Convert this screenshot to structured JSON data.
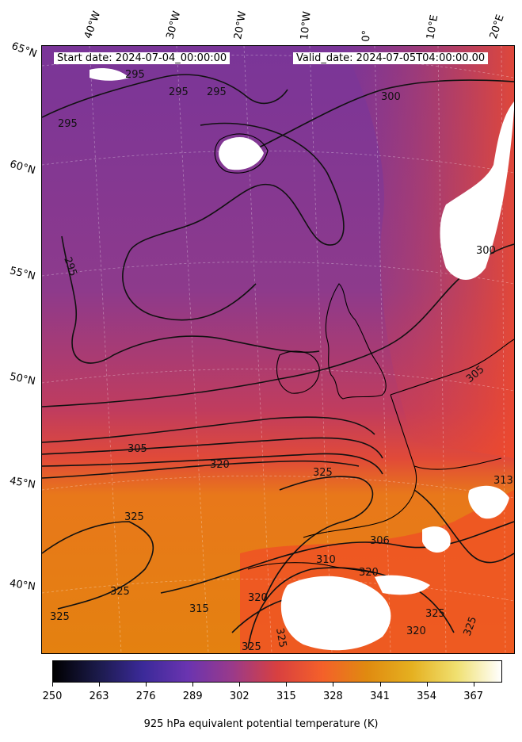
{
  "header": {
    "start_date": "Start date: 2024-07-04_00:00:00",
    "valid_date": "Valid_date: 2024-07-05T04:00:00.00"
  },
  "longitude_labels": [
    "40°W",
    "30°W",
    "20°W",
    "10°W",
    "0°",
    "10°E",
    "20°E"
  ],
  "latitude_labels": [
    "65°N",
    "60°N",
    "55°N",
    "50°N",
    "45°N",
    "40°N"
  ],
  "contour_labels": [
    "295",
    "295",
    "295",
    "295",
    "300",
    "300",
    "295",
    "305",
    "320",
    "325",
    "325",
    "325",
    "325",
    "306",
    "310",
    "320",
    "315",
    "320",
    "325",
    "325",
    "325",
    "320",
    "325",
    "313",
    "305"
  ],
  "colorbar": {
    "ticks": [
      "250",
      "263",
      "276",
      "289",
      "302",
      "315",
      "328",
      "341",
      "354",
      "367"
    ],
    "min": 250,
    "max": 375,
    "title": "925 hPa equivalent potential temperature (K)",
    "colormap": "CMRmap-like",
    "stops": [
      "#000000",
      "#1b1a4a",
      "#3b2a99",
      "#6a34b0",
      "#9a3a8a",
      "#d84040",
      "#f4602a",
      "#e08a10",
      "#e5b020",
      "#f0e070",
      "#ffffff"
    ]
  },
  "legend": {
    "color": "#000000",
    "variable": "equivalent potential temperature"
  },
  "colors": {
    "cool": "#7a3598",
    "mid": "#c43c5a",
    "warm": "#f04a2a",
    "hot": "#e57c10",
    "land_mask": "#ffffff"
  }
}
